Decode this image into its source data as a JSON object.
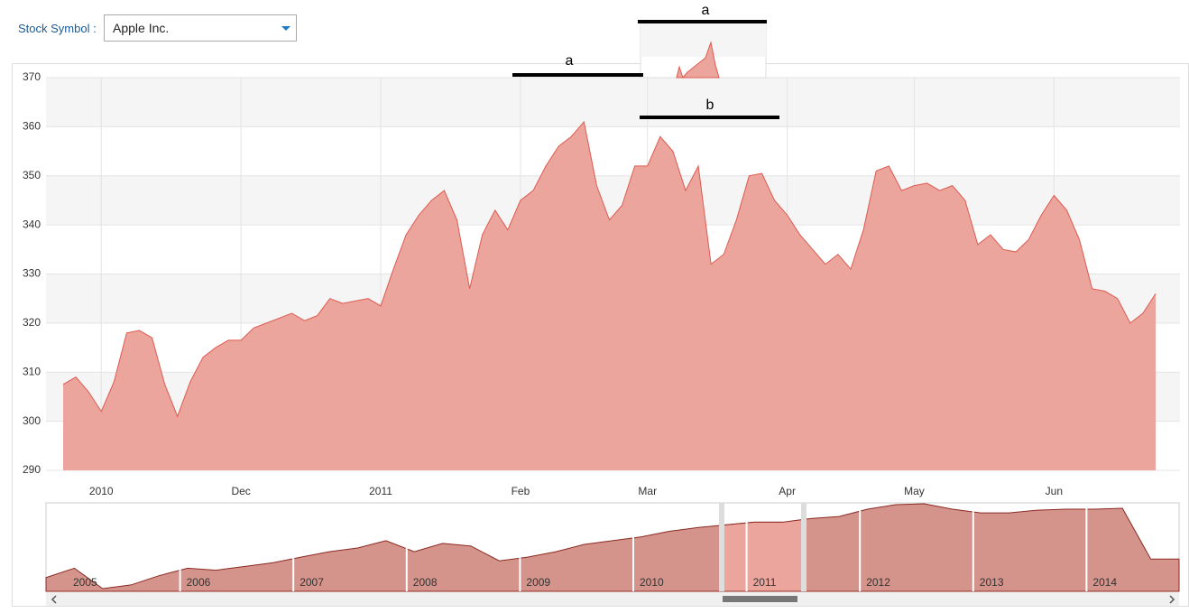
{
  "stock_symbol_label": "Stock Symbol :",
  "stock_symbol": "Apple Inc.",
  "chart_data": {
    "type": "area",
    "categories": [
      null,
      null,
      null,
      "2010",
      null,
      null,
      null,
      null,
      null,
      null,
      null,
      null,
      null,
      null,
      "Dec",
      null,
      null,
      null,
      null,
      null,
      null,
      null,
      null,
      null,
      null,
      "2011",
      null,
      null,
      null,
      null,
      null,
      null,
      null,
      null,
      null,
      null,
      "Feb",
      null,
      null,
      null,
      null,
      null,
      null,
      null,
      null,
      null,
      "Mar",
      null,
      null,
      null,
      null,
      null,
      null,
      null,
      null,
      null,
      null,
      "Apr",
      null,
      null,
      null,
      null,
      null,
      null,
      null,
      null,
      null,
      "May",
      null,
      null,
      null,
      null,
      null,
      null,
      null,
      null,
      null,
      null,
      "Jun",
      null,
      null,
      null,
      null,
      null,
      null,
      null,
      null
    ],
    "values": [
      307.5,
      309,
      306,
      302,
      308,
      318,
      318.5,
      317,
      307.5,
      301,
      308,
      313,
      315,
      316.5,
      316.5,
      319,
      320,
      321,
      322,
      320.5,
      321.5,
      325,
      324,
      324.5,
      325,
      323.5,
      331,
      338,
      342,
      345,
      347,
      341,
      327,
      338,
      343,
      339,
      345,
      347,
      352,
      356,
      358,
      361,
      348,
      341,
      344,
      352,
      352,
      358,
      355,
      347,
      352,
      332,
      334,
      341,
      350,
      350.5,
      345,
      342,
      338,
      335,
      332,
      334,
      331,
      339,
      351,
      352,
      347,
      348,
      348.5,
      347,
      348,
      345,
      336,
      338,
      335,
      334.5,
      337,
      342,
      346,
      343,
      337,
      327,
      326.5,
      325,
      320,
      322,
      326
    ],
    "color": "#eca59c",
    "line_color": "#dd5a50",
    "ylim": [
      290,
      370
    ],
    "yticks": [
      290,
      300,
      310,
      320,
      330,
      340,
      350,
      360,
      370
    ],
    "grid": true
  },
  "navigator": {
    "year_labels": [
      "2005",
      "2006",
      "2007",
      "2008",
      "2009",
      "2010",
      "2011",
      "2012",
      "2013",
      "2014"
    ],
    "values": [
      112,
      188,
      22,
      52,
      128,
      188,
      172,
      202,
      232,
      278,
      322,
      352,
      412,
      322,
      390,
      368,
      248,
      278,
      322,
      382,
      412,
      442,
      488,
      518,
      540,
      562,
      562,
      592,
      608,
      668,
      705,
      712,
      668,
      638,
      638,
      660,
      668,
      668,
      675,
      262,
      262
    ],
    "color": "#d4938b",
    "selected_color": "#eca59c",
    "line_color": "#8b2a22"
  },
  "annotations": [
    "a",
    "a",
    "b"
  ]
}
